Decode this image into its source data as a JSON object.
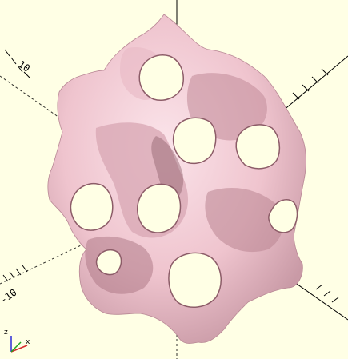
{
  "viewport": {
    "background": "#ffffe5",
    "model_color": "#f2cdd5",
    "model_shade": "#b88895",
    "model_dark": "#6e4a53",
    "hole_color": "#ffffe5"
  },
  "axes": {
    "label_upper_left": "10",
    "label_lower_left": "-10"
  },
  "gizmo": {
    "z_label": "z",
    "x_label": "x",
    "z_color": "#2b2bd6",
    "x_color": "#d62b2b",
    "y_color": "#1fa51f"
  }
}
